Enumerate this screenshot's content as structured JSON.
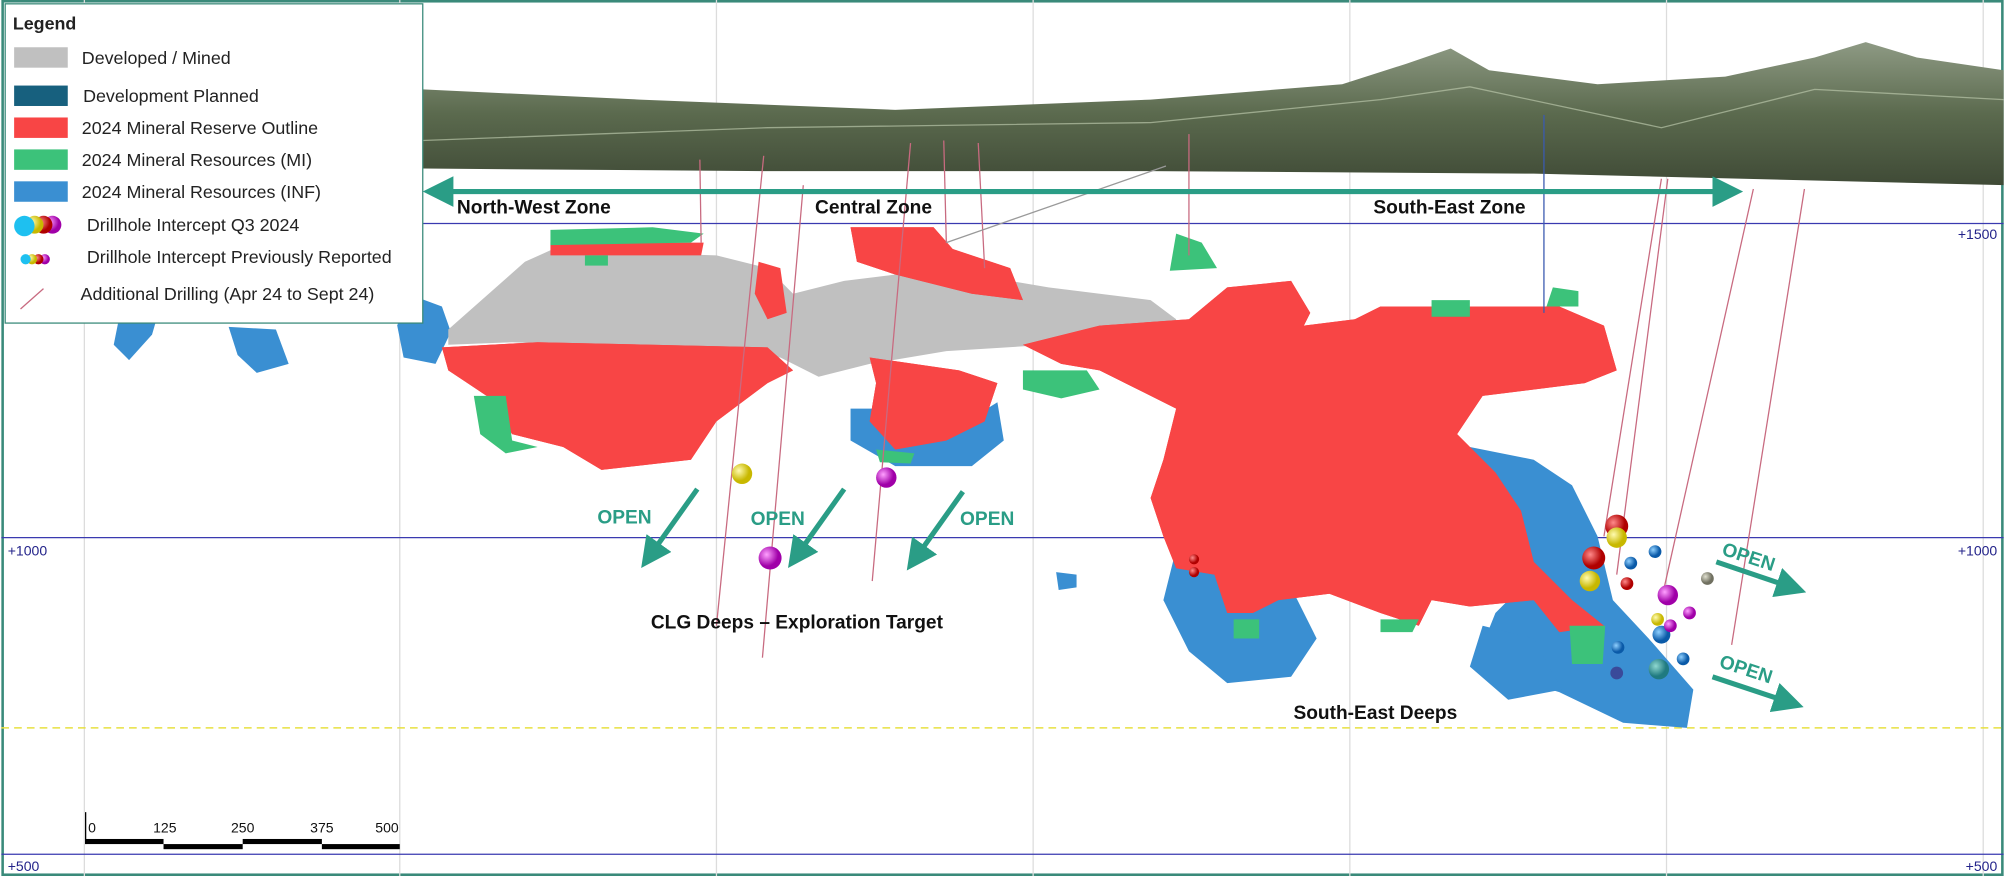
{
  "legend": {
    "title": "Legend",
    "items": [
      "Developed / Mined",
      "Development Planned",
      "2024 Mineral Reserve Outline",
      "2024 Mineral Resources (MI)",
      "2024 Mineral Resources (INF)",
      "Drillhole Intercept Q3 2024",
      "Drillhole Intercept Previously Reported",
      "Additional Drilling (Apr 24 to Sept 24)"
    ]
  },
  "zones": [
    "North-West Zone",
    "Central Zone",
    "South-East Zone"
  ],
  "elevations": [
    "+1500",
    "+1000",
    "+500"
  ],
  "scale_bar": [
    "0",
    "125",
    "250",
    "375",
    "500"
  ],
  "annotations": {
    "open": [
      "OPEN",
      "OPEN",
      "OPEN",
      "OPEN",
      "OPEN"
    ],
    "clg_deeps": "CLG Deeps – Exploration Target",
    "south_east_deeps": "South-East Deeps"
  }
}
